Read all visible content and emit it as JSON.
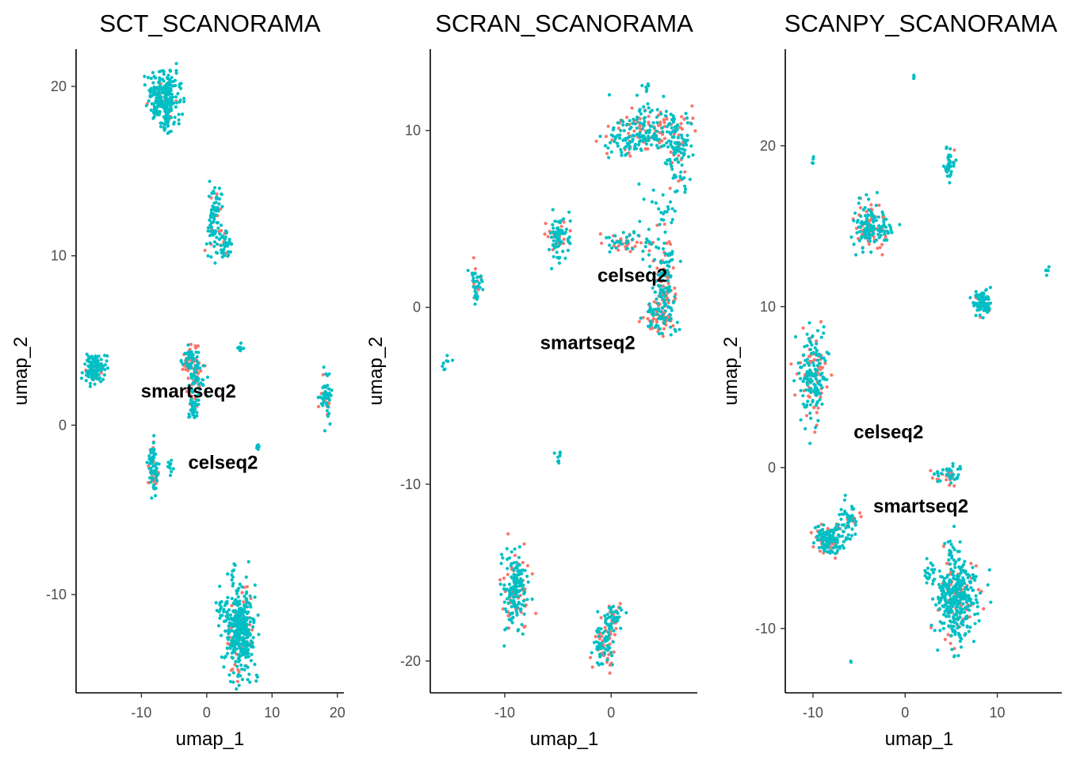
{
  "colors": {
    "celseq2": "#F8766D",
    "smartseq2": "#00BFC4"
  },
  "chart_data": [
    {
      "type": "scatter",
      "title": "SCT_SCANORAMA",
      "xlabel": "umap_1",
      "ylabel": "umap_2",
      "xlim": [
        -20.0,
        21.0
      ],
      "ylim": [
        -15.8,
        22.2
      ],
      "xticks": [
        -10,
        0,
        10,
        20
      ],
      "yticks": [
        -10,
        0,
        10,
        20
      ],
      "legend": "none",
      "annotations": [
        {
          "text": "smartseq2",
          "x": -2.8,
          "y": 2.0
        },
        {
          "text": "celseq2",
          "x": 2.5,
          "y": -2.2
        }
      ],
      "clusters": [
        {
          "x": -6.6,
          "y": 19.3,
          "sx": 1.2,
          "sy": 0.8,
          "n": 260,
          "p_celseq2": 0.05
        },
        {
          "x": -6.2,
          "y": 18.1,
          "sx": 0.4,
          "sy": 0.5,
          "n": 30,
          "p_celseq2": 0.05
        },
        {
          "x": 1.2,
          "y": 12.2,
          "sx": 0.5,
          "sy": 0.9,
          "n": 90,
          "p_celseq2": 0.15
        },
        {
          "x": 2.8,
          "y": 10.6,
          "sx": 0.5,
          "sy": 0.5,
          "n": 40,
          "p_celseq2": 0.15
        },
        {
          "x": -17.2,
          "y": 3.3,
          "sx": 0.8,
          "sy": 0.45,
          "n": 110,
          "p_celseq2": 0.05
        },
        {
          "x": -2.5,
          "y": 3.9,
          "sx": 0.7,
          "sy": 0.4,
          "n": 70,
          "p_celseq2": 0.4
        },
        {
          "x": -1.6,
          "y": 2.8,
          "sx": 0.6,
          "sy": 0.6,
          "n": 70,
          "p_celseq2": 0.35
        },
        {
          "x": -2.0,
          "y": 1.3,
          "sx": 0.4,
          "sy": 0.6,
          "n": 50,
          "p_celseq2": 0.2
        },
        {
          "x": 5.2,
          "y": 4.6,
          "sx": 0.2,
          "sy": 0.15,
          "n": 10,
          "p_celseq2": 0.0
        },
        {
          "x": 18.3,
          "y": 1.7,
          "sx": 0.4,
          "sy": 0.6,
          "n": 60,
          "p_celseq2": 0.15
        },
        {
          "x": -8.2,
          "y": -2.5,
          "sx": 0.35,
          "sy": 0.7,
          "n": 80,
          "p_celseq2": 0.3
        },
        {
          "x": -5.5,
          "y": -2.5,
          "sx": 0.3,
          "sy": 0.2,
          "n": 10,
          "p_celseq2": 0.0
        },
        {
          "x": 7.8,
          "y": -1.3,
          "sx": 0.15,
          "sy": 0.2,
          "n": 8,
          "p_celseq2": 0.0
        },
        {
          "x": 5.2,
          "y": -12.2,
          "sx": 1.1,
          "sy": 1.3,
          "n": 400,
          "p_celseq2": 0.12
        },
        {
          "x": 2.3,
          "y": -10.8,
          "sx": 0.4,
          "sy": 0.3,
          "n": 20,
          "p_celseq2": 0.0
        },
        {
          "x": 4.0,
          "y": -8.6,
          "sx": 0.2,
          "sy": 0.3,
          "n": 8,
          "p_celseq2": 0.0
        }
      ]
    },
    {
      "type": "scatter",
      "title": "SCRAN_SCANORAMA",
      "xlabel": "umap_1",
      "ylabel": "umap_2",
      "xlim": [
        -17.0,
        8.1
      ],
      "ylim": [
        -21.8,
        14.6
      ],
      "xticks": [
        -10,
        0
      ],
      "yticks": [
        -20,
        -10,
        0,
        10
      ],
      "legend": "none",
      "annotations": [
        {
          "text": "celseq2",
          "x": 2.0,
          "y": 1.8
        },
        {
          "text": "smartseq2",
          "x": -2.2,
          "y": -2.0
        }
      ],
      "clusters": [
        {
          "x": 4.0,
          "y": 10.0,
          "sx": 1.8,
          "sy": 0.7,
          "n": 200,
          "p_celseq2": 0.35
        },
        {
          "x": 6.2,
          "y": 8.6,
          "sx": 0.6,
          "sy": 1.0,
          "n": 80,
          "p_celseq2": 0.2
        },
        {
          "x": 1.6,
          "y": 9.4,
          "sx": 1.0,
          "sy": 0.5,
          "n": 60,
          "p_celseq2": 0.2
        },
        {
          "x": 3.4,
          "y": 12.5,
          "sx": 0.2,
          "sy": 0.3,
          "n": 6,
          "p_celseq2": 0.0
        },
        {
          "x": 4.4,
          "y": 5.0,
          "sx": 1.0,
          "sy": 1.4,
          "n": 40,
          "p_celseq2": 0.05
        },
        {
          "x": 1.5,
          "y": 3.7,
          "sx": 1.2,
          "sy": 0.3,
          "n": 60,
          "p_celseq2": 0.4
        },
        {
          "x": 5.0,
          "y": 1.6,
          "sx": 0.5,
          "sy": 1.4,
          "n": 120,
          "p_celseq2": 0.3
        },
        {
          "x": 4.6,
          "y": -0.6,
          "sx": 0.8,
          "sy": 0.7,
          "n": 100,
          "p_celseq2": 0.45
        },
        {
          "x": -5.0,
          "y": 4.1,
          "sx": 0.5,
          "sy": 0.7,
          "n": 80,
          "p_celseq2": 0.2
        },
        {
          "x": -12.7,
          "y": 1.3,
          "sx": 0.3,
          "sy": 0.5,
          "n": 40,
          "p_celseq2": 0.25
        },
        {
          "x": -15.6,
          "y": -3.1,
          "sx": 0.2,
          "sy": 0.25,
          "n": 8,
          "p_celseq2": 0.0
        },
        {
          "x": -4.9,
          "y": -8.5,
          "sx": 0.25,
          "sy": 0.2,
          "n": 8,
          "p_celseq2": 0.0
        },
        {
          "x": -9.0,
          "y": -16.0,
          "sx": 0.6,
          "sy": 1.1,
          "n": 200,
          "p_celseq2": 0.25
        },
        {
          "x": -0.6,
          "y": -19.2,
          "sx": 0.5,
          "sy": 0.7,
          "n": 90,
          "p_celseq2": 0.45
        },
        {
          "x": 0.2,
          "y": -17.5,
          "sx": 0.5,
          "sy": 0.5,
          "n": 60,
          "p_celseq2": 0.45
        }
      ]
    },
    {
      "type": "scatter",
      "title": "SCANPY_SCANORAMA",
      "xlabel": "umap_1",
      "ylabel": "umap_2",
      "xlim": [
        -13.0,
        17.0
      ],
      "ylim": [
        -14.0,
        26.0
      ],
      "xticks": [
        -10,
        0,
        10
      ],
      "yticks": [
        -10,
        0,
        10,
        20
      ],
      "legend": "none",
      "annotations": [
        {
          "text": "celseq2",
          "x": -1.8,
          "y": 2.2
        },
        {
          "text": "smartseq2",
          "x": 1.7,
          "y": -2.4
        }
      ],
      "clusters": [
        {
          "x": 1.0,
          "y": 24.3,
          "sx": 0.1,
          "sy": 0.1,
          "n": 3,
          "p_celseq2": 0.0
        },
        {
          "x": -10.0,
          "y": 18.9,
          "sx": 0.15,
          "sy": 0.15,
          "n": 4,
          "p_celseq2": 0.0
        },
        {
          "x": 4.8,
          "y": 18.8,
          "sx": 0.3,
          "sy": 0.5,
          "n": 40,
          "p_celseq2": 0.2
        },
        {
          "x": -4.0,
          "y": 15.0,
          "sx": 0.8,
          "sy": 0.7,
          "n": 140,
          "p_celseq2": 0.25
        },
        {
          "x": -2.0,
          "y": 14.8,
          "sx": 0.6,
          "sy": 0.25,
          "n": 30,
          "p_celseq2": 0.1
        },
        {
          "x": 15.3,
          "y": 12.3,
          "sx": 0.15,
          "sy": 0.15,
          "n": 5,
          "p_celseq2": 0.0
        },
        {
          "x": 8.5,
          "y": 10.2,
          "sx": 0.5,
          "sy": 0.4,
          "n": 90,
          "p_celseq2": 0.15
        },
        {
          "x": -10.0,
          "y": 5.8,
          "sx": 0.7,
          "sy": 1.4,
          "n": 200,
          "p_celseq2": 0.25
        },
        {
          "x": 5.0,
          "y": -0.5,
          "sx": 0.5,
          "sy": 0.3,
          "n": 40,
          "p_celseq2": 0.3
        },
        {
          "x": 3.3,
          "y": -0.5,
          "sx": 0.25,
          "sy": 0.25,
          "n": 10,
          "p_celseq2": 0.4
        },
        {
          "x": -8.3,
          "y": -4.4,
          "sx": 0.8,
          "sy": 0.45,
          "n": 160,
          "p_celseq2": 0.3
        },
        {
          "x": -6.0,
          "y": -3.2,
          "sx": 0.6,
          "sy": 0.4,
          "n": 50,
          "p_celseq2": 0.2
        },
        {
          "x": 5.5,
          "y": -8.2,
          "sx": 1.0,
          "sy": 1.3,
          "n": 400,
          "p_celseq2": 0.12
        },
        {
          "x": 5.0,
          "y": -5.3,
          "sx": 0.2,
          "sy": 0.3,
          "n": 15,
          "p_celseq2": 0.1
        },
        {
          "x": 2.5,
          "y": -6.5,
          "sx": 0.4,
          "sy": 0.4,
          "n": 15,
          "p_celseq2": 0.0
        },
        {
          "x": -6.0,
          "y": -12.1,
          "sx": 0.1,
          "sy": 0.1,
          "n": 2,
          "p_celseq2": 0.0
        }
      ]
    }
  ]
}
